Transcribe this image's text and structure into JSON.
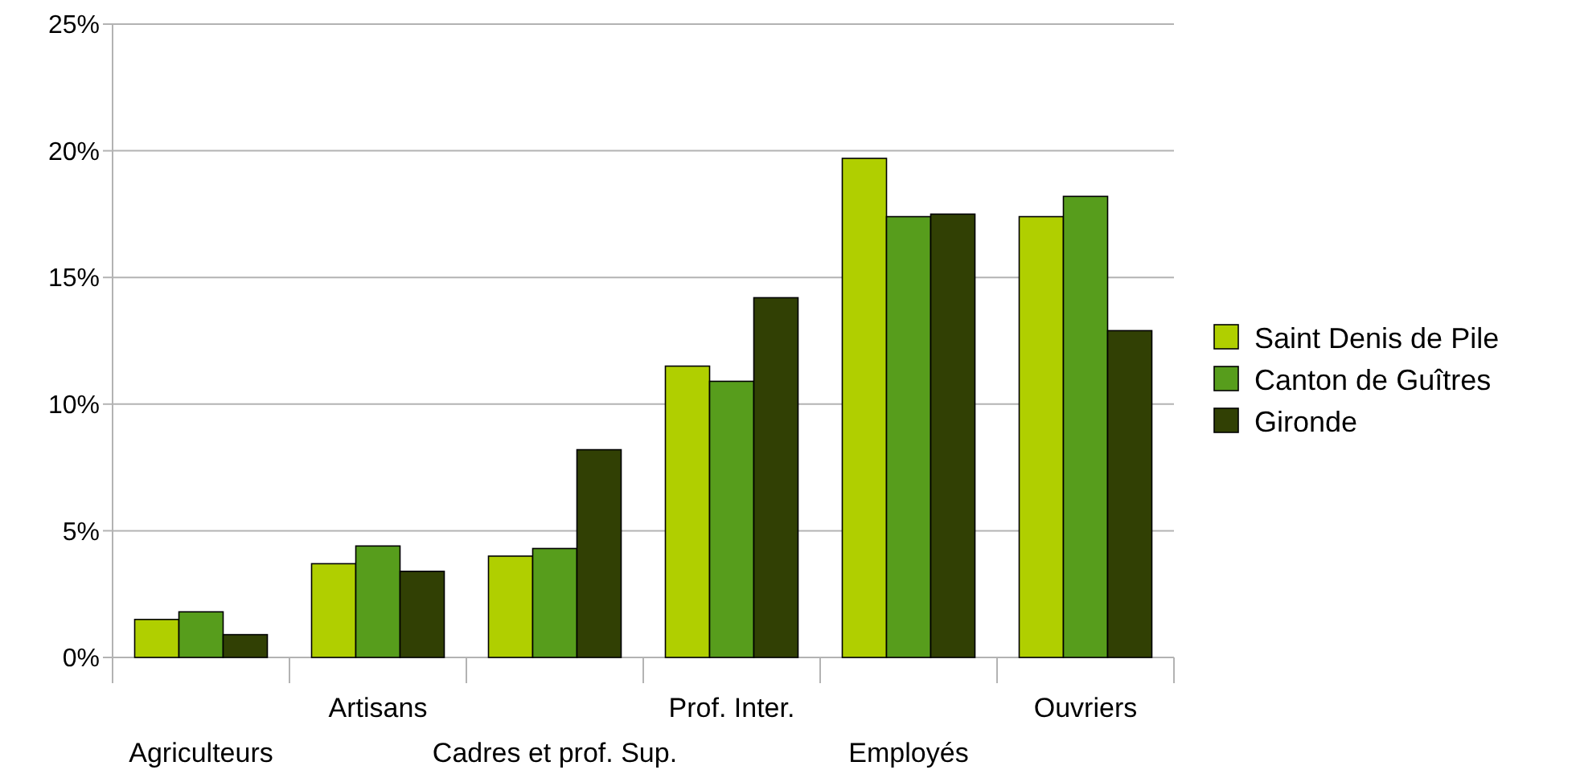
{
  "chart_data": {
    "type": "bar",
    "categories": [
      "Agriculteurs",
      "Artisans",
      "Cadres et prof. Sup.",
      "Prof. Inter.",
      "Employés",
      "Ouvriers"
    ],
    "series": [
      {
        "name": "Saint Denis de Pile",
        "color": "#b0cf00",
        "values": [
          1.5,
          3.7,
          4.0,
          11.5,
          19.7,
          17.4
        ]
      },
      {
        "name": "Canton de Guîtres",
        "color": "#579d1c",
        "values": [
          1.8,
          4.4,
          4.3,
          10.9,
          17.4,
          18.2
        ]
      },
      {
        "name": "Gironde",
        "color": "#314004",
        "values": [
          0.9,
          3.4,
          8.2,
          14.2,
          17.5,
          12.9
        ]
      }
    ],
    "ylim": [
      0,
      25
    ],
    "yticks": [
      {
        "value": 0,
        "label": "0%"
      },
      {
        "value": 5,
        "label": "5%"
      },
      {
        "value": 10,
        "label": "10%"
      },
      {
        "value": 15,
        "label": "15%"
      },
      {
        "value": 20,
        "label": "20%"
      },
      {
        "value": 25,
        "label": "25%"
      }
    ],
    "grid": true,
    "legend": "right"
  }
}
